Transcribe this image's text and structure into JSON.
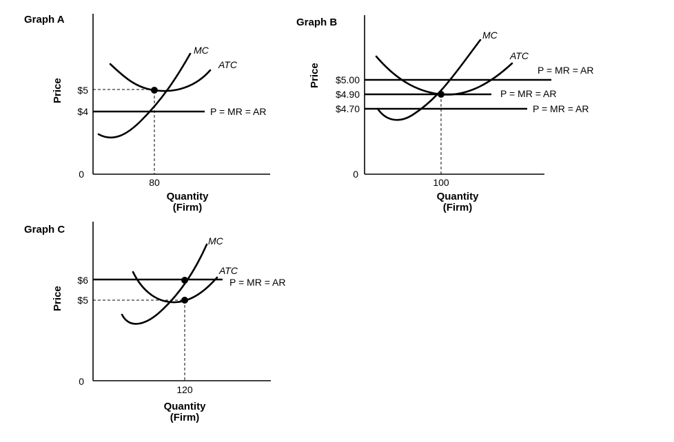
{
  "graphs": [
    {
      "title": "Graph A",
      "y_axis_label": "Price",
      "x_axis_label_line1": "Quantity",
      "x_axis_label_line2": "(Firm)",
      "origin_label": "0",
      "x_tick": "80",
      "y_ticks": [
        "$5",
        "$4"
      ],
      "mc_label": "MC",
      "atc_label": "ATC",
      "price_lines": [
        "P = MR = AR"
      ]
    },
    {
      "title": "Graph B",
      "y_axis_label": "Price",
      "x_axis_label_line1": "Quantity",
      "x_axis_label_line2": "(Firm)",
      "origin_label": "0",
      "x_tick": "100",
      "y_ticks": [
        "$5.00",
        "$4.90",
        "$4.70"
      ],
      "mc_label": "MC",
      "atc_label": "ATC",
      "price_lines": [
        "P = MR = AR",
        "P = MR = AR",
        "P = MR = AR"
      ]
    },
    {
      "title": "Graph C",
      "y_axis_label": "Price",
      "x_axis_label_line1": "Quantity",
      "x_axis_label_line2": "(Firm)",
      "origin_label": "0",
      "x_tick": "120",
      "y_ticks": [
        "$6",
        "$5"
      ],
      "mc_label": "MC",
      "atc_label": "ATC",
      "price_lines": [
        "P = MR = AR"
      ]
    }
  ]
}
